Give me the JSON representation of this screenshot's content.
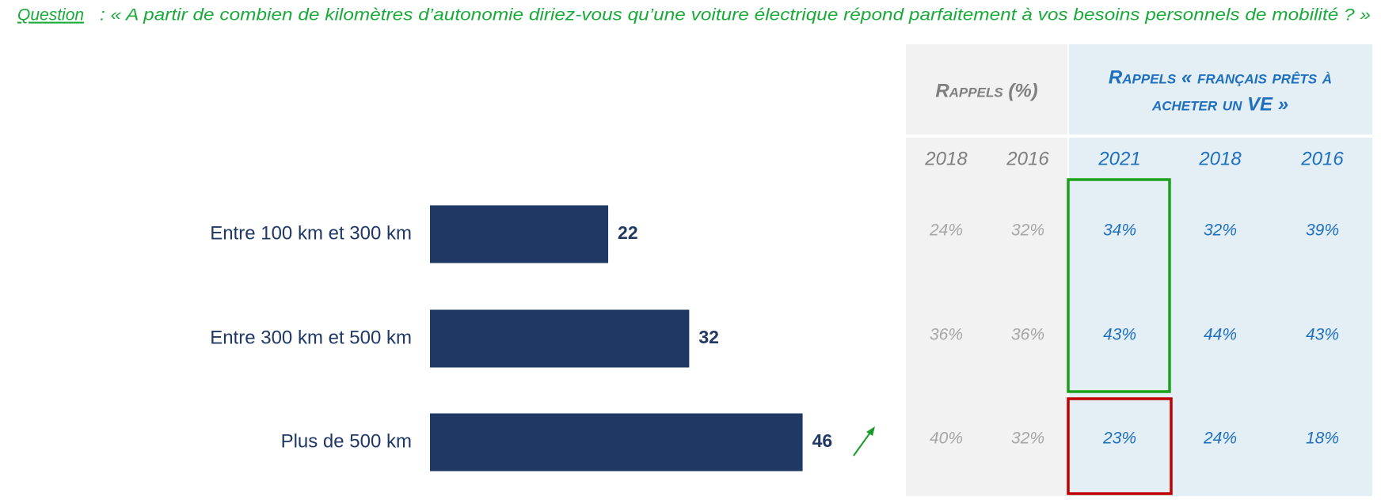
{
  "question_label": "Question",
  "question_text": ": « A partir de combien de kilomètres d’autonomie diriez-vous qu’une voiture électrique répond parfaitement à vos besoins personnels de mobilité ? »",
  "chart_data": {
    "type": "bar",
    "orientation": "horizontal",
    "categories": [
      "Entre 100 km et 300 km",
      "Entre 300 km et 500 km",
      "Plus de 500 km"
    ],
    "values": [
      22,
      32,
      46
    ],
    "color": "#1f3864"
  },
  "table": {
    "header_left": "Rappels (%)",
    "header_right": [
      "Rappels « français prêts à",
      "acheter un VE »"
    ],
    "years": [
      "2018",
      "2016",
      "2021",
      "2018",
      "2016"
    ],
    "rows": [
      [
        "24%",
        "32%",
        "34%",
        "32%",
        "39%"
      ],
      [
        "36%",
        "36%",
        "43%",
        "44%",
        "43%"
      ],
      [
        "40%",
        "32%",
        "23%",
        "24%",
        "18%"
      ]
    ]
  }
}
